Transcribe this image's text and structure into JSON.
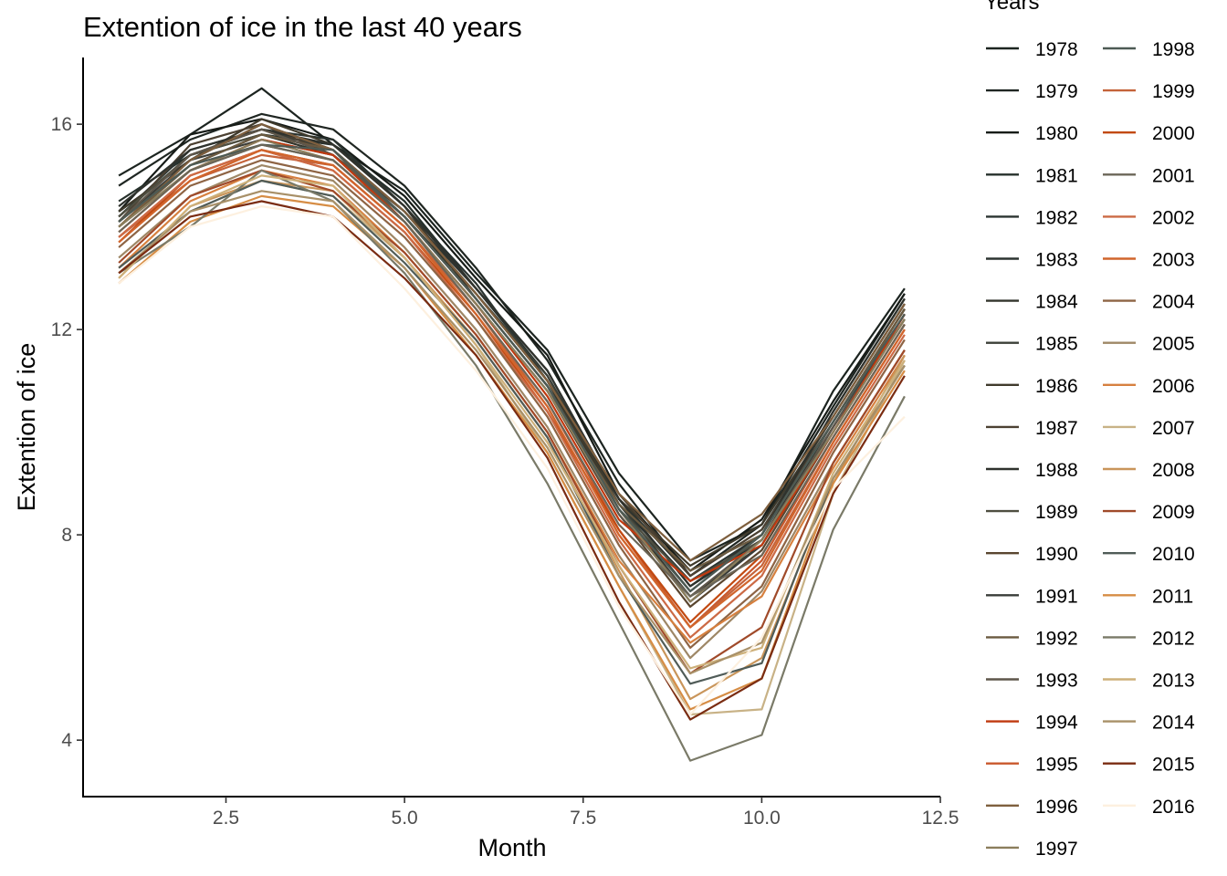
{
  "chart_data": {
    "type": "line",
    "title": "Extention of ice in the last 40 years",
    "xlabel": "Month",
    "ylabel": "Extention of ice",
    "xlim": [
      0.5,
      12.5
    ],
    "ylim": [
      2.9,
      17.3
    ],
    "x_ticks": [
      {
        "value": 2.5,
        "label": "2.5"
      },
      {
        "value": 5.0,
        "label": "5.0"
      },
      {
        "value": 7.5,
        "label": "7.5"
      },
      {
        "value": 10.0,
        "label": "10.0"
      },
      {
        "value": 12.5,
        "label": "12.5"
      }
    ],
    "y_ticks": [
      {
        "value": 4,
        "label": "4"
      },
      {
        "value": 8,
        "label": "8"
      },
      {
        "value": 12,
        "label": "12"
      },
      {
        "value": 16,
        "label": "16"
      }
    ],
    "grid": false,
    "legend": {
      "title": "Years",
      "placement": "right",
      "columns": 2
    },
    "x": [
      1,
      2,
      3,
      4,
      5,
      6,
      7,
      8,
      9,
      10,
      11,
      12
    ],
    "series": [
      {
        "name": "1978",
        "color": "#1c2420",
        "values": [
          15.0,
          15.8,
          16.7,
          15.6,
          14.7,
          13.1,
          11.6,
          9.2,
          7.5,
          8.2,
          10.8,
          12.8
        ]
      },
      {
        "name": "1979",
        "color": "#1f2622",
        "values": [
          14.8,
          15.7,
          16.2,
          15.9,
          14.8,
          13.2,
          11.4,
          9.0,
          7.2,
          8.2,
          10.5,
          12.7
        ]
      },
      {
        "name": "1980",
        "color": "#171c18",
        "values": [
          14.3,
          15.8,
          16.1,
          15.7,
          14.6,
          13.0,
          11.5,
          8.8,
          7.3,
          8.3,
          10.6,
          12.7
        ]
      },
      {
        "name": "1981",
        "color": "#26302b",
        "values": [
          14.5,
          15.4,
          15.8,
          15.6,
          14.5,
          12.8,
          11.1,
          8.7,
          7.0,
          7.9,
          10.2,
          12.4
        ]
      },
      {
        "name": "1982",
        "color": "#2a3330",
        "values": [
          14.2,
          15.5,
          15.9,
          15.7,
          14.4,
          12.9,
          11.0,
          8.6,
          7.1,
          8.0,
          10.4,
          12.6
        ]
      },
      {
        "name": "1983",
        "color": "#2c3430",
        "values": [
          14.3,
          15.3,
          16.0,
          15.5,
          14.3,
          12.8,
          11.2,
          8.7,
          7.2,
          8.1,
          10.3,
          12.5
        ]
      },
      {
        "name": "1984",
        "color": "#33352c",
        "values": [
          14.1,
          15.2,
          15.8,
          15.4,
          14.2,
          12.7,
          11.0,
          8.5,
          6.8,
          7.8,
          10.1,
          12.3
        ]
      },
      {
        "name": "1985",
        "color": "#3b3f37",
        "values": [
          14.2,
          15.4,
          15.9,
          15.5,
          14.3,
          12.7,
          11.1,
          8.6,
          6.9,
          8.0,
          10.2,
          12.4
        ]
      },
      {
        "name": "1986",
        "color": "#3f3a2c",
        "values": [
          14.3,
          15.3,
          16.1,
          15.6,
          14.4,
          12.6,
          10.9,
          8.7,
          7.4,
          8.2,
          10.3,
          12.5
        ]
      },
      {
        "name": "1987",
        "color": "#4c4132",
        "values": [
          14.1,
          15.6,
          16.0,
          15.4,
          14.3,
          12.7,
          11.0,
          8.8,
          7.2,
          8.1,
          10.2,
          12.4
        ]
      },
      {
        "name": "1988",
        "color": "#2f322d",
        "values": [
          14.4,
          15.5,
          15.9,
          15.6,
          14.4,
          12.8,
          11.2,
          8.7,
          7.0,
          8.0,
          10.4,
          12.6
        ]
      },
      {
        "name": "1989",
        "color": "#4e4e40",
        "values": [
          14.2,
          15.4,
          15.8,
          15.5,
          14.2,
          12.6,
          10.9,
          8.5,
          7.1,
          7.9,
          10.1,
          12.3
        ]
      },
      {
        "name": "1990",
        "color": "#5a4630",
        "values": [
          14.0,
          15.1,
          15.6,
          15.3,
          14.1,
          12.5,
          10.8,
          8.4,
          6.6,
          7.7,
          10.0,
          12.2
        ]
      },
      {
        "name": "1991",
        "color": "#3a3d39",
        "values": [
          14.1,
          15.3,
          15.7,
          15.4,
          14.2,
          12.6,
          10.9,
          8.5,
          6.7,
          7.8,
          10.1,
          12.3
        ]
      },
      {
        "name": "1992",
        "color": "#6b5a40",
        "values": [
          14.0,
          15.2,
          15.8,
          15.5,
          14.1,
          12.5,
          10.8,
          8.6,
          7.3,
          8.0,
          10.2,
          12.4
        ]
      },
      {
        "name": "1993",
        "color": "#5e564a",
        "values": [
          14.1,
          15.4,
          15.9,
          15.4,
          14.2,
          12.6,
          10.9,
          8.4,
          6.8,
          7.9,
          10.1,
          12.2
        ]
      },
      {
        "name": "1994",
        "color": "#c0390f",
        "values": [
          13.9,
          15.1,
          15.7,
          15.4,
          14.1,
          12.5,
          10.7,
          8.3,
          7.1,
          7.8,
          10.0,
          12.3
        ]
      },
      {
        "name": "1995",
        "color": "#c9582c",
        "values": [
          13.8,
          15.0,
          15.5,
          15.2,
          14.0,
          12.4,
          10.6,
          8.1,
          6.2,
          7.5,
          9.9,
          12.1
        ]
      },
      {
        "name": "1996",
        "color": "#7e5f3e",
        "values": [
          14.0,
          15.3,
          16.0,
          15.5,
          14.3,
          12.7,
          11.0,
          8.8,
          7.5,
          8.4,
          10.3,
          12.5
        ]
      },
      {
        "name": "1997",
        "color": "#8b7e5c",
        "values": [
          14.0,
          15.1,
          15.7,
          15.3,
          14.1,
          12.5,
          10.8,
          8.5,
          6.7,
          7.9,
          10.0,
          12.2
        ]
      },
      {
        "name": "1998",
        "color": "#4d5a54",
        "values": [
          14.1,
          15.2,
          15.6,
          15.5,
          14.2,
          12.6,
          10.9,
          8.5,
          6.9,
          8.0,
          10.2,
          12.3
        ]
      },
      {
        "name": "1999",
        "color": "#c4633a",
        "values": [
          13.8,
          14.9,
          15.4,
          15.2,
          14.0,
          12.4,
          10.5,
          8.0,
          6.2,
          7.4,
          9.8,
          12.0
        ]
      },
      {
        "name": "2000",
        "color": "#c24a12",
        "values": [
          13.7,
          15.0,
          15.5,
          15.1,
          13.9,
          12.3,
          10.4,
          8.1,
          6.3,
          7.6,
          9.9,
          12.1
        ]
      },
      {
        "name": "2001",
        "color": "#6b6658",
        "values": [
          13.9,
          15.1,
          15.6,
          15.3,
          14.1,
          12.4,
          10.6,
          8.2,
          6.8,
          7.6,
          9.9,
          12.1
        ]
      },
      {
        "name": "2002",
        "color": "#cc6a45",
        "values": [
          13.8,
          15.0,
          15.5,
          15.1,
          13.9,
          12.2,
          10.4,
          7.9,
          6.0,
          7.2,
          9.7,
          11.9
        ]
      },
      {
        "name": "2003",
        "color": "#d1652c",
        "values": [
          13.7,
          14.9,
          15.5,
          15.2,
          14.0,
          12.3,
          10.5,
          8.0,
          6.2,
          7.3,
          9.8,
          12.0
        ]
      },
      {
        "name": "2004",
        "color": "#8e6444",
        "values": [
          13.6,
          14.8,
          15.3,
          15.0,
          13.8,
          12.2,
          10.3,
          7.8,
          5.8,
          7.0,
          9.6,
          11.8
        ]
      },
      {
        "name": "2005",
        "color": "#9e8766",
        "values": [
          13.4,
          14.6,
          15.2,
          14.9,
          13.6,
          12.0,
          10.1,
          7.6,
          5.6,
          6.9,
          9.4,
          11.6
        ]
      },
      {
        "name": "2006",
        "color": "#d6803f",
        "values": [
          13.2,
          14.5,
          15.1,
          14.8,
          13.5,
          11.9,
          10.0,
          7.5,
          5.9,
          6.8,
          9.3,
          11.5
        ]
      },
      {
        "name": "2007",
        "color": "#c8b286",
        "values": [
          13.1,
          14.3,
          14.9,
          14.6,
          13.4,
          11.7,
          9.6,
          7.0,
          4.5,
          4.6,
          8.8,
          11.4
        ]
      },
      {
        "name": "2008",
        "color": "#c9955a",
        "values": [
          13.0,
          14.4,
          14.9,
          14.7,
          13.4,
          11.8,
          9.9,
          7.3,
          4.8,
          5.6,
          9.0,
          11.5
        ]
      },
      {
        "name": "2009",
        "color": "#a04a2a",
        "values": [
          13.3,
          14.6,
          15.1,
          14.7,
          13.5,
          11.9,
          10.0,
          7.4,
          5.3,
          6.2,
          9.4,
          11.6
        ]
      },
      {
        "name": "2010",
        "color": "#505c58",
        "values": [
          13.2,
          14.3,
          14.9,
          14.6,
          13.3,
          11.8,
          9.9,
          7.2,
          5.1,
          5.5,
          9.1,
          11.3
        ]
      },
      {
        "name": "2011",
        "color": "#d68d45",
        "values": [
          12.9,
          14.1,
          14.6,
          14.4,
          13.2,
          11.5,
          9.6,
          7.0,
          4.6,
          5.2,
          9.0,
          11.2
        ]
      },
      {
        "name": "2012",
        "color": "#7a7a68",
        "values": [
          13.1,
          14.0,
          15.1,
          14.5,
          13.1,
          11.3,
          9.0,
          6.3,
          3.6,
          4.1,
          8.1,
          10.7
        ]
      },
      {
        "name": "2013",
        "color": "#cdb07a",
        "values": [
          13.0,
          14.4,
          15.0,
          14.8,
          13.4,
          11.7,
          9.8,
          7.4,
          5.4,
          5.8,
          9.2,
          11.4
        ]
      },
      {
        "name": "2014",
        "color": "#a89068",
        "values": [
          13.1,
          14.3,
          14.7,
          14.5,
          13.2,
          11.6,
          9.7,
          7.2,
          5.3,
          5.9,
          9.1,
          11.3
        ]
      },
      {
        "name": "2015",
        "color": "#7a2c12",
        "values": [
          13.1,
          14.2,
          14.5,
          14.2,
          13.0,
          11.5,
          9.5,
          6.7,
          4.4,
          5.2,
          8.8,
          11.1
        ]
      },
      {
        "name": "2016",
        "color": "#fdf0df",
        "values": [
          12.9,
          14.0,
          14.4,
          14.2,
          12.8,
          11.2,
          9.3,
          6.6,
          4.5,
          6.0,
          8.9,
          10.3
        ]
      }
    ]
  }
}
